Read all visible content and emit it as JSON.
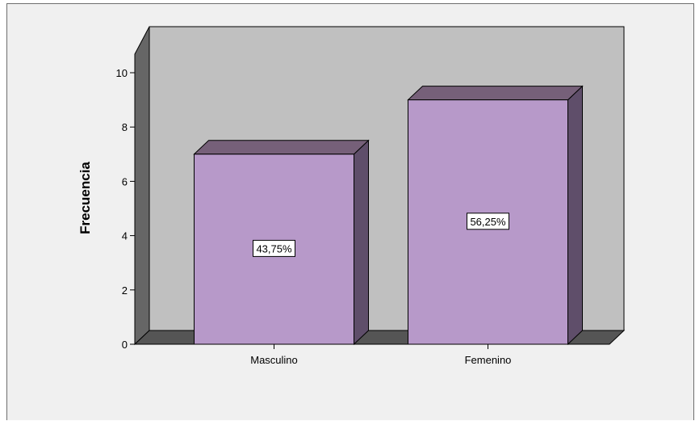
{
  "chart_data": {
    "type": "bar",
    "style": "3d",
    "categories": [
      "Masculino",
      "Femenino"
    ],
    "values": [
      7,
      9
    ],
    "data_labels": [
      "43,75%",
      "56,25%"
    ],
    "ylabel": "Frecuencia",
    "xlabel": "",
    "ylim": [
      0,
      10
    ],
    "yticks": [
      "0",
      "2",
      "4",
      "6",
      "8",
      "10"
    ],
    "grid": false,
    "legend": "none",
    "colors": {
      "bar_front": "#b799c9",
      "bar_top": "#766079",
      "bar_side": "#5f4e6a",
      "back_wall": "#c0c0c0",
      "side_wall": "#666666",
      "floor": "#555555",
      "background": "#f0f0f0",
      "outline": "#000000"
    }
  }
}
